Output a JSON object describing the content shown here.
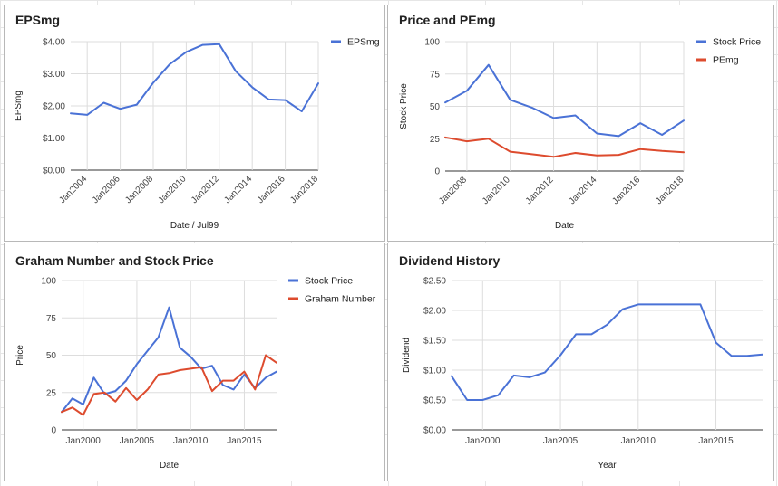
{
  "chart_data": [
    {
      "id": "eps",
      "type": "line",
      "title": "EPSmg",
      "xlabel": "Date / Jul99",
      "ylabel": "EPSmg",
      "x_start": 2003,
      "x_end": 2018,
      "x_ticks": [
        2004,
        2006,
        2008,
        2010,
        2012,
        2014,
        2016,
        2018
      ],
      "x_tick_labels": [
        "Jan2004",
        "Jan2006",
        "Jan2008",
        "Jan2010",
        "Jan2012",
        "Jan2014",
        "Jan2016",
        "Jan2018"
      ],
      "y_ticks": [
        0,
        1,
        2,
        3,
        4
      ],
      "y_tick_labels": [
        "$0.00",
        "$1.00",
        "$2.00",
        "$3.00",
        "$4.00"
      ],
      "ylim": [
        0,
        4
      ],
      "x_labels_rotated": true,
      "legend_position": "right",
      "series": [
        {
          "name": "EPSmg",
          "color": "#4a72d6",
          "x": [
            2003,
            2004,
            2005,
            2006,
            2007,
            2008,
            2009,
            2010,
            2011,
            2012,
            2013,
            2014,
            2015,
            2016,
            2017,
            2018
          ],
          "y": [
            1.77,
            1.72,
            2.1,
            1.91,
            2.04,
            2.72,
            3.3,
            3.68,
            3.9,
            3.92,
            3.08,
            2.58,
            2.2,
            2.18,
            1.83,
            2.7
          ]
        }
      ]
    },
    {
      "id": "price",
      "type": "line",
      "title": "Price and PEmg",
      "xlabel": "Date",
      "ylabel": "Stock Price",
      "x_start": 2007,
      "x_end": 2018,
      "x_ticks": [
        2008,
        2010,
        2012,
        2014,
        2016,
        2018
      ],
      "x_tick_labels": [
        "Jan2008",
        "Jan2010",
        "Jan2012",
        "Jan2014",
        "Jan2016",
        "Jan2018"
      ],
      "y_ticks": [
        0,
        25,
        50,
        75,
        100
      ],
      "y_tick_labels": [
        "0",
        "25",
        "50",
        "75",
        "100"
      ],
      "ylim": [
        0,
        100
      ],
      "x_labels_rotated": true,
      "legend_position": "right",
      "series": [
        {
          "name": "Stock Price",
          "color": "#4a72d6",
          "x": [
            2007,
            2008,
            2009,
            2010,
            2011,
            2012,
            2013,
            2014,
            2015,
            2016,
            2017,
            2018
          ],
          "y": [
            53,
            62,
            82,
            55,
            49,
            41,
            43,
            29,
            27,
            37,
            28,
            39
          ]
        },
        {
          "name": "PEmg",
          "color": "#dd4b2e",
          "x": [
            2007,
            2008,
            2009,
            2010,
            2011,
            2012,
            2013,
            2014,
            2015,
            2016,
            2017,
            2018
          ],
          "y": [
            26,
            23,
            25,
            15,
            13,
            11,
            14,
            12,
            12.5,
            17,
            15.5,
            14.5
          ]
        }
      ]
    },
    {
      "id": "graham",
      "type": "line",
      "title": "Graham Number and Stock Price",
      "xlabel": "Date",
      "ylabel": "Price",
      "x_start": 1998,
      "x_end": 2018,
      "x_ticks": [
        2000,
        2005,
        2010,
        2015
      ],
      "x_tick_labels": [
        "Jan2000",
        "Jan2005",
        "Jan2010",
        "Jan2015"
      ],
      "y_ticks": [
        0,
        25,
        50,
        75,
        100
      ],
      "y_tick_labels": [
        "0",
        "25",
        "50",
        "75",
        "100"
      ],
      "ylim": [
        0,
        100
      ],
      "x_labels_rotated": false,
      "legend_position": "right",
      "series": [
        {
          "name": "Stock Price",
          "color": "#4a72d6",
          "x": [
            1998,
            1999,
            2000,
            2001,
            2002,
            2003,
            2004,
            2005,
            2006,
            2007,
            2008,
            2009,
            2010,
            2011,
            2012,
            2013,
            2014,
            2015,
            2016,
            2017,
            2018
          ],
          "y": [
            12,
            21,
            17,
            35,
            24,
            26,
            33,
            44,
            53,
            62,
            82,
            55,
            49,
            41,
            43,
            30,
            27,
            37,
            28,
            35,
            39
          ]
        },
        {
          "name": "Graham Number",
          "color": "#dd4b2e",
          "x": [
            1998,
            1999,
            2000,
            2001,
            2002,
            2003,
            2004,
            2005,
            2006,
            2007,
            2008,
            2009,
            2010,
            2011,
            2012,
            2013,
            2014,
            2015,
            2016,
            2017,
            2018
          ],
          "y": [
            12,
            15,
            10,
            24,
            25,
            19,
            28,
            20,
            27,
            37,
            38,
            40,
            41,
            42,
            26,
            33,
            33,
            39,
            27,
            50,
            45
          ]
        }
      ]
    },
    {
      "id": "dividend",
      "type": "line",
      "title": "Dividend History",
      "xlabel": "Year",
      "ylabel": "Dividend",
      "x_start": 1998,
      "x_end": 2018,
      "x_ticks": [
        2000,
        2005,
        2010,
        2015
      ],
      "x_tick_labels": [
        "Jan2000",
        "Jan2005",
        "Jan2010",
        "Jan2015"
      ],
      "y_ticks": [
        0,
        0.5,
        1,
        1.5,
        2,
        2.5
      ],
      "y_tick_labels": [
        "$0.00",
        "$0.50",
        "$1.00",
        "$1.50",
        "$2.00",
        "$2.50"
      ],
      "ylim": [
        0,
        2.5
      ],
      "x_labels_rotated": false,
      "legend_position": "none",
      "series": [
        {
          "color": "#4a72d6",
          "x": [
            1998,
            1999,
            2000,
            2001,
            2002,
            2003,
            2004,
            2005,
            2006,
            2007,
            2008,
            2009,
            2010,
            2011,
            2012,
            2013,
            2014,
            2015,
            2016,
            2017,
            2018
          ],
          "y": [
            0.9,
            0.5,
            0.5,
            0.58,
            0.91,
            0.88,
            0.96,
            1.25,
            1.6,
            1.6,
            1.76,
            2.02,
            2.1,
            2.1,
            2.1,
            2.1,
            2.1,
            1.46,
            1.24,
            1.24,
            1.26
          ]
        }
      ]
    }
  ]
}
